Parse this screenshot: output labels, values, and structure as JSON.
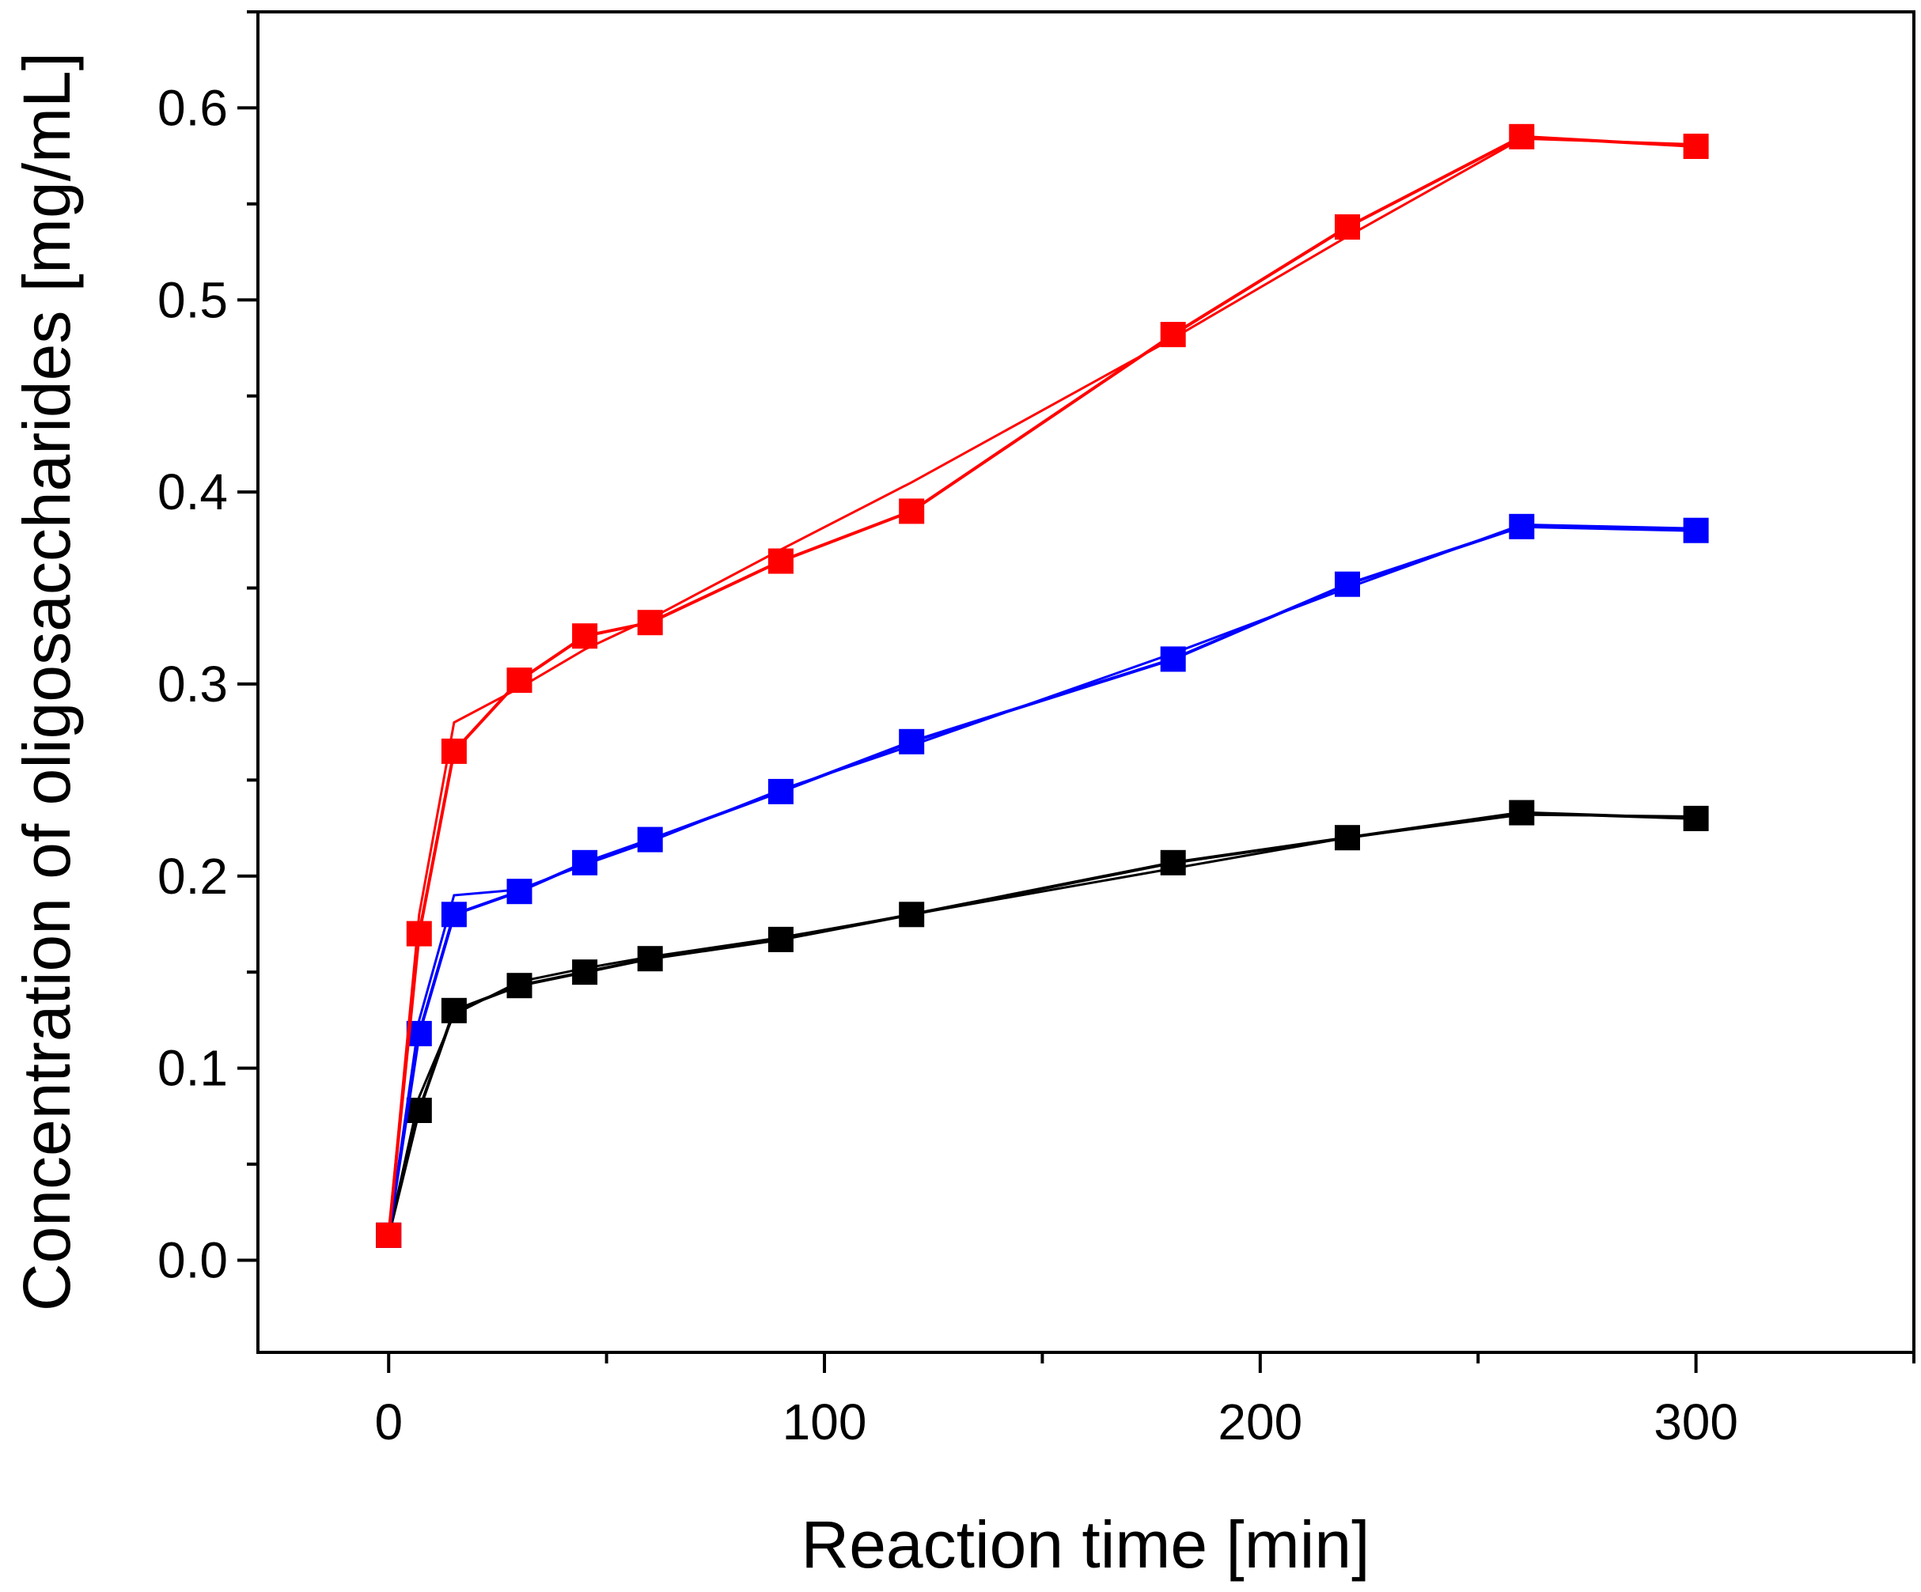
{
  "chart_data": {
    "type": "line",
    "title": "",
    "xlabel": "Reaction time [min]",
    "ylabel": "Concentration of oligosaccharides [mg/mL]",
    "xlim": [
      -30,
      350
    ],
    "ylim": [
      -0.048,
      0.65
    ],
    "xticks": [
      0,
      100,
      200,
      300
    ],
    "xtick_labels": [
      "0",
      "100",
      "200",
      "300"
    ],
    "yticks": [
      0.0,
      0.1,
      0.2,
      0.3,
      0.4,
      0.5,
      0.6
    ],
    "ytick_labels": [
      "0.0",
      "0.1",
      "0.2",
      "0.3",
      "0.4",
      "0.5",
      "0.6"
    ],
    "grid": false,
    "legend": "none",
    "marker": "square",
    "series": [
      {
        "color": "#000000",
        "x": [
          0,
          7,
          15,
          30,
          45,
          60,
          90,
          120,
          180,
          220,
          260,
          300
        ],
        "y": [
          0.013,
          0.078,
          0.13,
          0.143,
          0.15,
          0.157,
          0.167,
          0.18,
          0.207,
          0.22,
          0.233,
          0.23
        ],
        "fit_x": [
          0,
          7,
          15,
          30,
          45,
          60,
          90,
          120,
          180,
          220,
          260,
          300
        ],
        "fit_y": [
          0.013,
          0.085,
          0.128,
          0.145,
          0.152,
          0.158,
          0.168,
          0.18,
          0.204,
          0.22,
          0.232,
          0.231
        ]
      },
      {
        "color": "#0000ff",
        "x": [
          0,
          7,
          15,
          30,
          45,
          60,
          90,
          120,
          180,
          220,
          260,
          300
        ],
        "y": [
          0.013,
          0.118,
          0.18,
          0.192,
          0.207,
          0.219,
          0.244,
          0.27,
          0.313,
          0.352,
          0.382,
          0.38
        ],
        "fit_x": [
          0,
          7,
          15,
          30,
          45,
          60,
          90,
          120,
          180,
          220,
          260,
          300
        ],
        "fit_y": [
          0.013,
          0.125,
          0.19,
          0.193,
          0.206,
          0.218,
          0.245,
          0.268,
          0.316,
          0.35,
          0.383,
          0.381
        ]
      },
      {
        "color": "#ff0000",
        "x": [
          0,
          7,
          15,
          30,
          45,
          60,
          90,
          120,
          180,
          220,
          260,
          300
        ],
        "y": [
          0.013,
          0.17,
          0.265,
          0.302,
          0.325,
          0.332,
          0.364,
          0.39,
          0.482,
          0.538,
          0.585,
          0.58
        ],
        "fit_x": [
          0,
          7,
          15,
          30,
          45,
          60,
          90,
          120,
          180,
          220,
          260,
          300
        ],
        "fit_y": [
          0.013,
          0.18,
          0.28,
          0.298,
          0.318,
          0.334,
          0.37,
          0.405,
          0.48,
          0.533,
          0.584,
          0.581
        ]
      }
    ]
  }
}
